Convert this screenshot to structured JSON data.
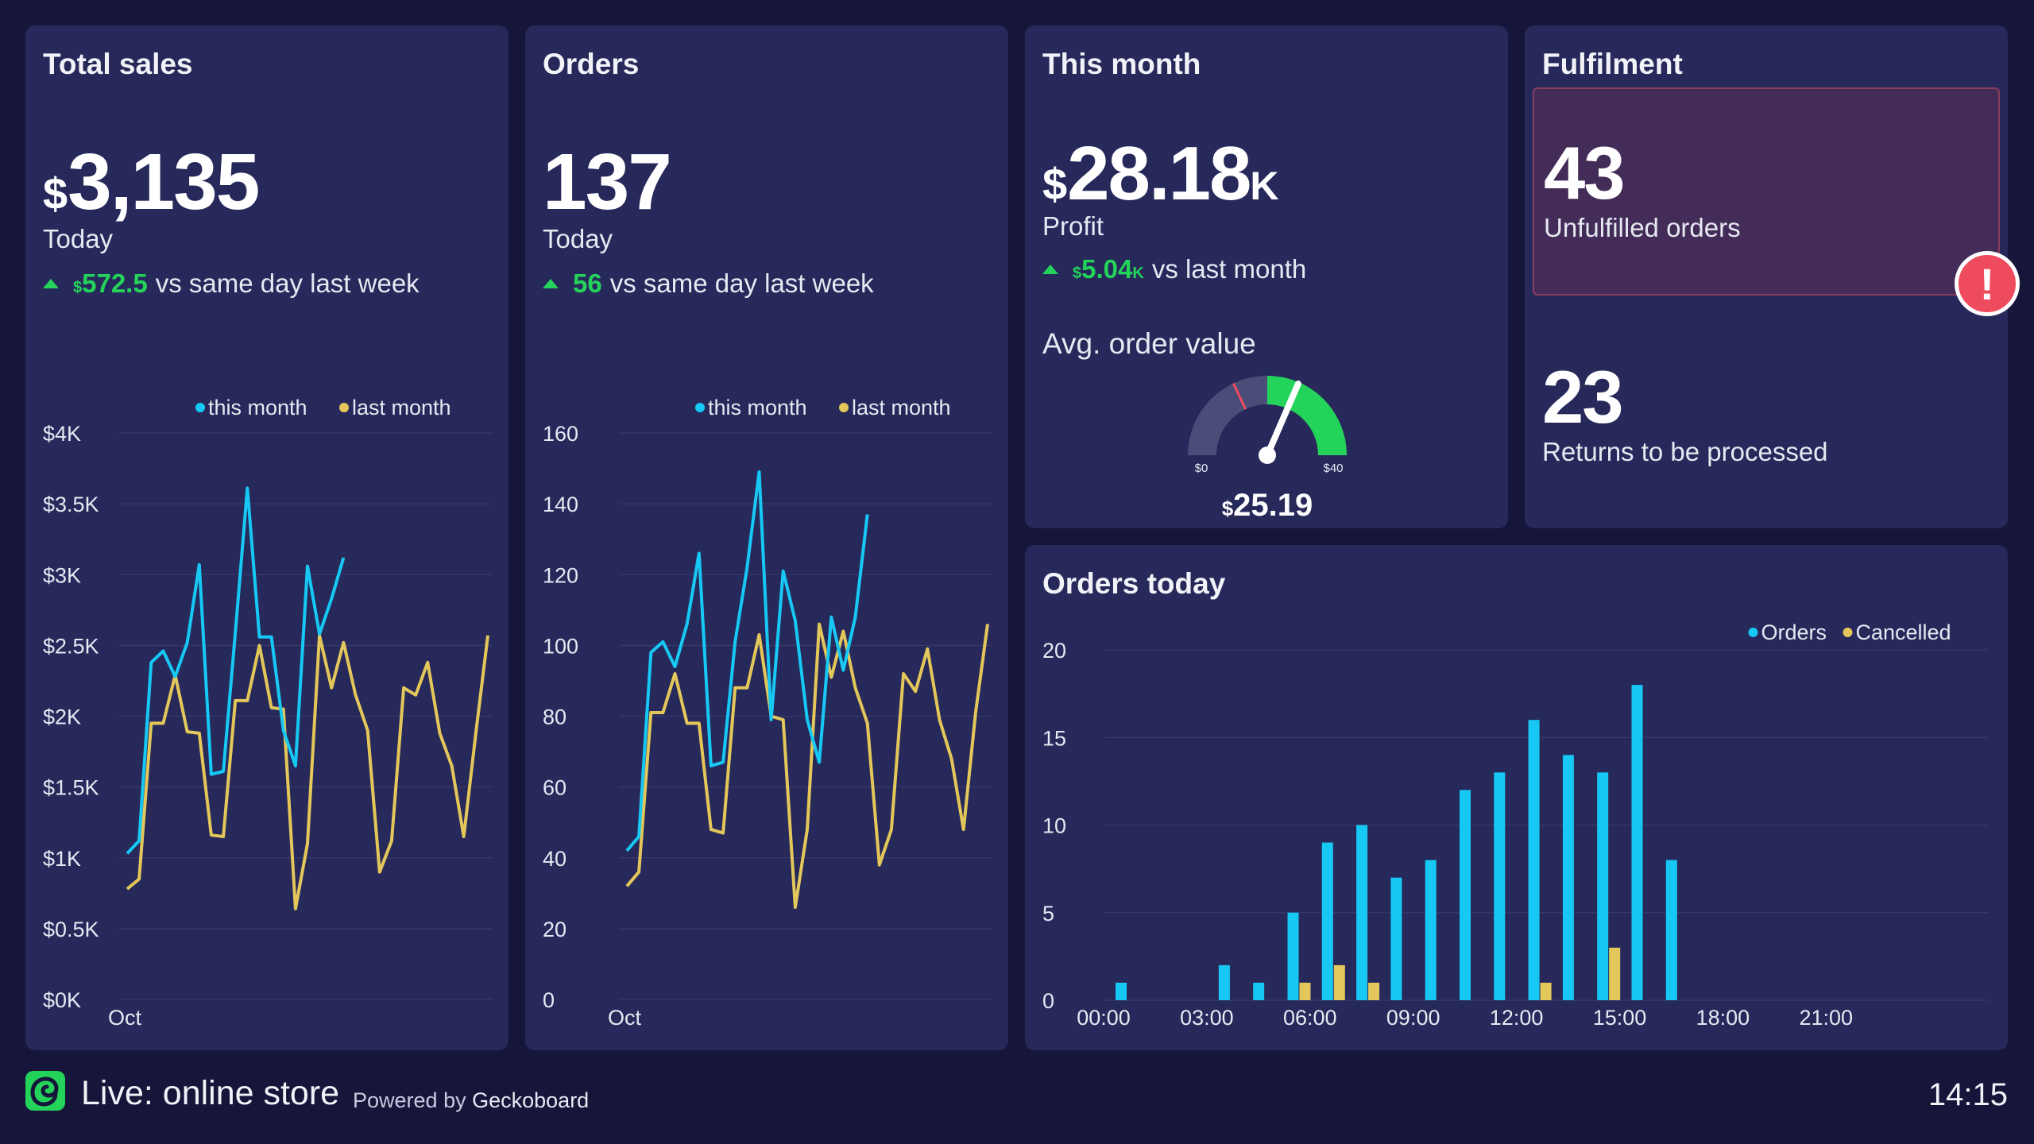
{
  "colors": {
    "background": "#15163a",
    "panel": "#26295a",
    "this_month": "#17c8f5",
    "last_month": "#e3c75a",
    "positive": "#24d35a",
    "alert": "#ef4b5e",
    "grid": "#3a3d6e"
  },
  "total_sales": {
    "title": "Total sales",
    "currency": "$",
    "value": "3,135",
    "label": "Today",
    "delta_currency": "$",
    "delta_value": "572.5",
    "delta_text": "vs same day last week"
  },
  "orders": {
    "title": "Orders",
    "value": "137",
    "label": "Today",
    "delta_value": "56",
    "delta_text": "vs same day last week"
  },
  "this_month": {
    "title": "This month",
    "currency": "$",
    "value": "28.18",
    "suffix": "K",
    "label": "Profit",
    "delta_currency": "$",
    "delta_value": "5.04",
    "delta_suffix": "K",
    "delta_text": "vs last month",
    "gauge_title": "Avg. order value",
    "gauge_min": "$0",
    "gauge_max": "$40",
    "gauge_currency": "$",
    "gauge_value": "25.19",
    "gauge_fraction": 0.63,
    "gauge_green_start": 0.5,
    "gauge_red_mark": 0.36
  },
  "fulfilment": {
    "title": "Fulfilment",
    "unfulfilled_value": "43",
    "unfulfilled_label": "Unfulfilled orders",
    "alert_icon": "exclamation-icon",
    "alert_glyph": "!",
    "returns_value": "23",
    "returns_label": "Returns to be processed"
  },
  "footer": {
    "logo_icon": "geckoboard-logo-icon",
    "title": "Live: online store",
    "powered_prefix": "Powered by",
    "powered_brand": "Geckoboard",
    "time": "14:15"
  },
  "chart_data": [
    {
      "id": "sales",
      "type": "line",
      "ylim": [
        0,
        4000
      ],
      "yticks": [
        0,
        500,
        1000,
        1500,
        2000,
        2500,
        3000,
        3500,
        4000
      ],
      "ytick_labels": [
        "$0K",
        "$0.5K",
        "$1K",
        "$1.5K",
        "$2K",
        "$2.5K",
        "$3K",
        "$3.5K",
        "$4K"
      ],
      "xlabel_tick": "Oct",
      "legend": [
        "this month",
        "last month"
      ],
      "series": [
        {
          "name": "this month",
          "values": [
            1030,
            1120,
            2380,
            2460,
            2280,
            2520,
            3070,
            1590,
            1610,
            2590,
            3610,
            2560,
            2560,
            1900,
            1650,
            3060,
            2580,
            2830,
            3120
          ]
        },
        {
          "name": "last month",
          "values": [
            780,
            850,
            1950,
            1950,
            2290,
            1890,
            1880,
            1160,
            1150,
            2110,
            2110,
            2500,
            2060,
            2050,
            640,
            1100,
            2570,
            2200,
            2520,
            2150,
            1900,
            900,
            1120,
            2200,
            2150,
            2380,
            1880,
            1650,
            1150,
            1880,
            2570
          ]
        }
      ]
    },
    {
      "id": "orders",
      "type": "line",
      "ylim": [
        0,
        160
      ],
      "yticks": [
        0,
        20,
        40,
        60,
        80,
        100,
        120,
        140,
        160
      ],
      "ytick_labels": [
        "0",
        "20",
        "40",
        "60",
        "80",
        "100",
        "120",
        "140",
        "160"
      ],
      "xlabel_tick": "Oct",
      "legend": [
        "this month",
        "last month"
      ],
      "series": [
        {
          "name": "this month",
          "values": [
            42,
            46,
            98,
            101,
            94,
            106,
            126,
            66,
            67,
            101,
            122,
            149,
            79,
            121,
            107,
            79,
            67,
            108,
            93,
            108,
            137
          ]
        },
        {
          "name": "last month",
          "values": [
            32,
            36,
            81,
            81,
            92,
            78,
            78,
            48,
            47,
            88,
            88,
            103,
            80,
            79,
            26,
            48,
            106,
            91,
            104,
            88,
            78,
            38,
            48,
            92,
            87,
            99,
            79,
            68,
            48,
            81,
            106
          ]
        }
      ]
    },
    {
      "id": "orders_today",
      "type": "bar",
      "title": "Orders today",
      "ylim": [
        0,
        20
      ],
      "yticks": [
        0,
        5,
        10,
        15,
        20
      ],
      "ytick_labels": [
        "0",
        "5",
        "10",
        "15",
        "20"
      ],
      "categories": [
        "00:00",
        "01:00",
        "02:00",
        "03:00",
        "04:00",
        "05:00",
        "06:00",
        "07:00",
        "08:00",
        "09:00",
        "10:00",
        "11:00",
        "12:00",
        "13:00",
        "14:00",
        "15:00",
        "16:00",
        "17:00",
        "18:00",
        "19:00",
        "20:00",
        "21:00",
        "22:00",
        "23:00"
      ],
      "xtick_labels": [
        "00:00",
        "03:00",
        "06:00",
        "09:00",
        "12:00",
        "15:00",
        "18:00",
        "21:00"
      ],
      "legend": [
        "Orders",
        "Cancelled"
      ],
      "series": [
        {
          "name": "Orders",
          "values": [
            1,
            0,
            0,
            2,
            1,
            5,
            9,
            10,
            7,
            8,
            12,
            13,
            16,
            14,
            13,
            18,
            8,
            0,
            0,
            0,
            0,
            0,
            0,
            0
          ]
        },
        {
          "name": "Cancelled",
          "values": [
            0,
            0,
            0,
            0,
            0,
            1,
            2,
            1,
            0,
            0,
            0,
            0,
            1,
            0,
            3,
            0,
            0,
            0,
            0,
            0,
            0,
            0,
            0,
            0
          ]
        }
      ]
    }
  ]
}
